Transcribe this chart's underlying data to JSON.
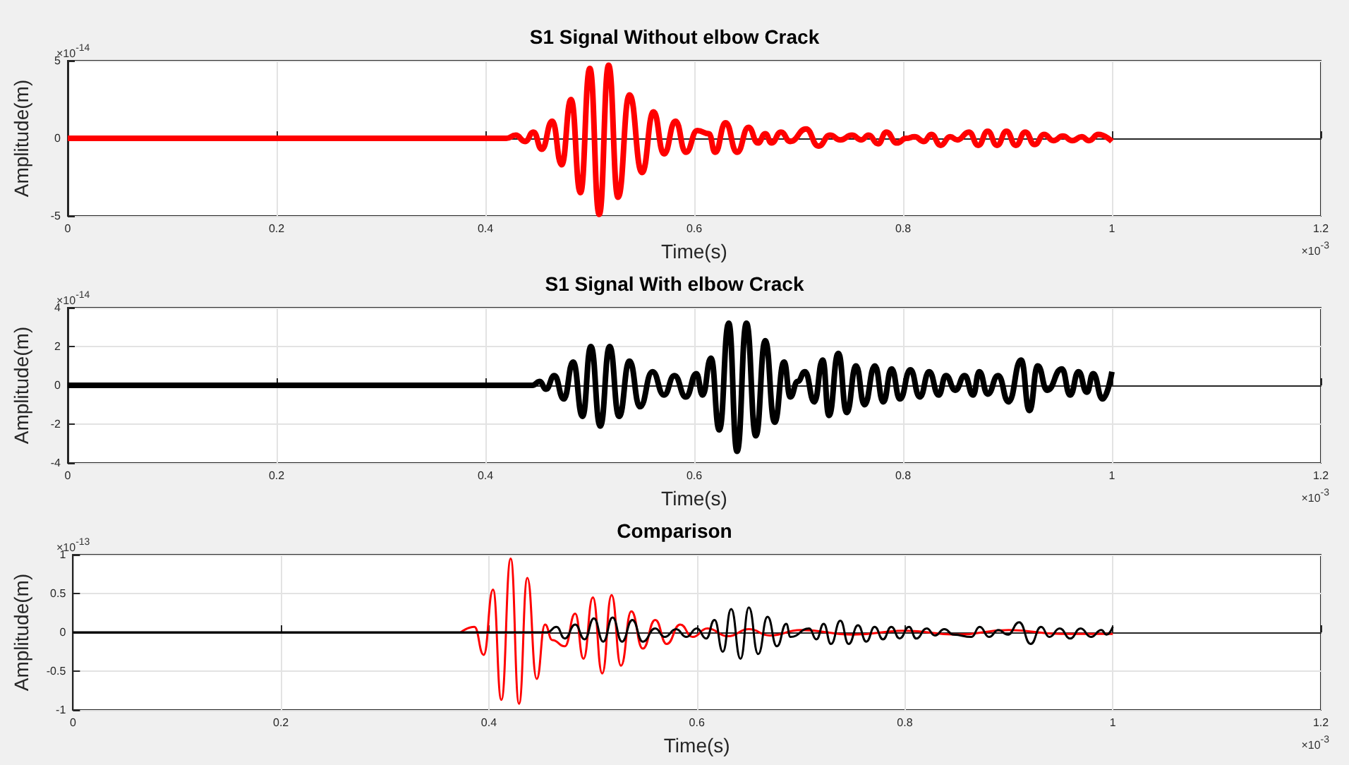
{
  "chart_data": [
    {
      "type": "line",
      "title": "S1 Signal Without elbow Crack",
      "xlabel": "Time(s)",
      "ylabel": "Amplitude(m)",
      "annotations": [
        "×10$^{-14}$",
        "×10$^{-3}$"
      ],
      "xlim": [
        0,
        1.2
      ],
      "xticks": [
        0,
        0.2,
        0.4,
        0.6,
        0.8,
        1,
        1.2
      ],
      "ylim": [
        -5,
        5
      ],
      "yticks": [
        -5,
        0,
        5
      ],
      "grid": true,
      "series": [
        {
          "color": "#ff0000",
          "x": [
            0,
            0.42,
            0.429,
            0.438,
            0.446,
            0.454,
            0.464,
            0.473,
            0.482,
            0.491,
            0.5,
            0.509,
            0.518,
            0.527,
            0.538,
            0.55,
            0.561,
            0.571,
            0.582,
            0.592,
            0.603,
            0.614,
            0.62,
            0.63,
            0.641,
            0.652,
            0.661,
            0.668,
            0.674,
            0.683,
            0.692,
            0.707,
            0.719,
            0.73,
            0.74,
            0.751,
            0.76,
            0.767,
            0.776,
            0.784,
            0.794,
            0.803,
            0.811,
            0.82,
            0.827,
            0.836,
            0.845,
            0.852,
            0.863,
            0.872,
            0.881,
            0.89,
            0.899,
            0.908,
            0.917,
            0.926,
            0.935,
            0.944,
            0.953,
            0.962,
            0.971,
            0.978,
            0.987,
            1
          ],
          "values": [
            0,
            0,
            0.2,
            -0.2,
            0.4,
            -0.7,
            1.1,
            -1.7,
            2.5,
            -3.5,
            4.5,
            -4.9,
            4.7,
            -3.8,
            2.8,
            -2.2,
            1.7,
            -1,
            1.1,
            -0.9,
            0.5,
            0.3,
            -0.9,
            1,
            -0.9,
            0.7,
            -0.3,
            0.3,
            -0.3,
            0.4,
            -0.2,
            0.6,
            -0.5,
            0.2,
            -0.1,
            0.2,
            -0.1,
            0.2,
            -0.35,
            0.4,
            -0.3,
            0,
            0.1,
            -0.2,
            0.25,
            -0.45,
            0.1,
            -0.1,
            0.4,
            -0.45,
            0.45,
            -0.45,
            0.45,
            -0.45,
            0.4,
            -0.4,
            0.25,
            -0.15,
            0.15,
            -0.15,
            0.1,
            -0.15,
            0.25,
            -0.2
          ]
        }
      ]
    },
    {
      "type": "line",
      "title": "S1 Signal With elbow Crack",
      "xlabel": "Time(s)",
      "ylabel": "Amplitude(m)",
      "annotations": [
        "×10$^{-14}$",
        "×10$^{-3}$"
      ],
      "xlim": [
        0,
        1.2
      ],
      "xticks": [
        0,
        0.2,
        0.4,
        0.6,
        0.8,
        1,
        1.2
      ],
      "ylim": [
        -4,
        4
      ],
      "yticks": [
        -4,
        -2,
        0,
        2,
        4
      ],
      "grid": true,
      "series": [
        {
          "color": "#000000",
          "x": [
            0,
            0.445,
            0.452,
            0.458,
            0.466,
            0.475,
            0.484,
            0.493,
            0.501,
            0.51,
            0.519,
            0.528,
            0.538,
            0.548,
            0.56,
            0.571,
            0.581,
            0.592,
            0.602,
            0.608,
            0.616,
            0.624,
            0.633,
            0.641,
            0.65,
            0.659,
            0.668,
            0.677,
            0.686,
            0.692,
            0.699,
            0.706,
            0.715,
            0.723,
            0.729,
            0.738,
            0.746,
            0.755,
            0.763,
            0.773,
            0.781,
            0.789,
            0.797,
            0.807,
            0.816,
            0.825,
            0.834,
            0.841,
            0.85,
            0.859,
            0.867,
            0.873,
            0.881,
            0.891,
            0.901,
            0.913,
            0.921,
            0.929,
            0.938,
            0.952,
            0.96,
            0.968,
            0.976,
            0.982,
            0.991,
            1
          ],
          "values": [
            0,
            0,
            0.2,
            -0.2,
            0.5,
            -0.7,
            1.2,
            -1.6,
            2,
            -2.1,
            2,
            -1.6,
            1.25,
            -1.1,
            0.7,
            -0.5,
            0.5,
            -0.6,
            0.6,
            -0.5,
            1.4,
            -2.3,
            3.2,
            -3.4,
            3.2,
            -2.6,
            2.3,
            -1.9,
            1.2,
            -0.6,
            0.2,
            0.7,
            -0.85,
            1.3,
            -1.55,
            1.65,
            -1.4,
            1,
            -1,
            1,
            -0.85,
            0.85,
            -0.7,
            0.8,
            -0.6,
            0.7,
            -0.5,
            0.5,
            -0.25,
            0.5,
            -0.5,
            0.7,
            -0.45,
            0.5,
            -0.85,
            1.3,
            -1.3,
            1,
            -0.25,
            0.85,
            -0.5,
            0.7,
            -0.35,
            0.6,
            -0.7,
            0.7
          ]
        }
      ]
    },
    {
      "type": "line",
      "title": "Comparison",
      "xlabel": "Time(s)",
      "ylabel": "Amplitude(m)",
      "annotations": [
        "×10$^{-13}$",
        "×10$^{-3}$"
      ],
      "xlim": [
        0,
        1.2
      ],
      "xticks": [
        0,
        0.2,
        0.4,
        0.6,
        0.8,
        1,
        1.2
      ],
      "ylim": [
        -1,
        1
      ],
      "yticks": [
        -1,
        -0.5,
        0,
        0.5,
        1
      ],
      "grid": true,
      "series": [
        {
          "color": "#ff0000",
          "x": [
            0.373,
            0.386,
            0.395,
            0.404,
            0.412,
            0.421,
            0.429,
            0.437,
            0.446,
            0.454,
            0.461,
            0.473,
            0.483,
            0.491,
            0.5,
            0.509,
            0.518,
            0.527,
            0.537,
            0.548,
            0.56,
            0.571,
            0.584,
            0.596,
            0.61,
            0.63,
            0.65,
            0.67,
            0.7,
            0.75,
            0.8,
            0.85,
            0.9,
            0.95,
            1
          ],
          "values": [
            0,
            0.07,
            -0.29,
            0.55,
            -0.87,
            0.95,
            -0.92,
            0.7,
            -0.6,
            0.1,
            -0.1,
            -0.18,
            0.24,
            -0.34,
            0.45,
            -0.53,
            0.48,
            -0.43,
            0.27,
            -0.21,
            0.16,
            -0.15,
            0.1,
            -0.06,
            0.05,
            -0.05,
            0.04,
            -0.04,
            0.03,
            -0.03,
            0.02,
            -0.03,
            0.03,
            -0.02,
            -0.02
          ]
        },
        {
          "color": "#000000",
          "x": [
            0,
            0.456,
            0.465,
            0.473,
            0.483,
            0.492,
            0.501,
            0.51,
            0.519,
            0.528,
            0.538,
            0.548,
            0.56,
            0.569,
            0.58,
            0.59,
            0.6,
            0.609,
            0.617,
            0.625,
            0.633,
            0.642,
            0.65,
            0.659,
            0.668,
            0.677,
            0.686,
            0.69,
            0.708,
            0.715,
            0.722,
            0.729,
            0.738,
            0.746,
            0.755,
            0.763,
            0.771,
            0.779,
            0.787,
            0.795,
            0.804,
            0.811,
            0.821,
            0.829,
            0.838,
            0.847,
            0.864,
            0.872,
            0.881,
            0.89,
            0.899,
            0.91,
            0.921,
            0.931,
            0.939,
            0.949,
            0.959,
            0.969,
            0.979,
            0.989,
            0.994,
            1
          ],
          "values": [
            0,
            0,
            0.07,
            -0.08,
            0.1,
            -0.09,
            0.18,
            -0.12,
            0.19,
            -0.12,
            0.16,
            -0.12,
            0.05,
            -0.06,
            0.04,
            -0.06,
            0.05,
            -0.08,
            0.16,
            -0.25,
            0.3,
            -0.34,
            0.32,
            -0.28,
            0.2,
            -0.18,
            0.11,
            -0.06,
            0.05,
            -0.09,
            0.11,
            -0.15,
            0.15,
            -0.15,
            0.09,
            -0.12,
            0.07,
            -0.09,
            0.07,
            -0.08,
            0.07,
            -0.08,
            0.05,
            -0.04,
            0.04,
            -0.03,
            -0.06,
            0.07,
            -0.06,
            0.03,
            -0.03,
            0.13,
            -0.15,
            0.07,
            -0.06,
            0.05,
            -0.08,
            0.05,
            -0.06,
            0.03,
            -0.03,
            0.07
          ]
        }
      ]
    }
  ]
}
